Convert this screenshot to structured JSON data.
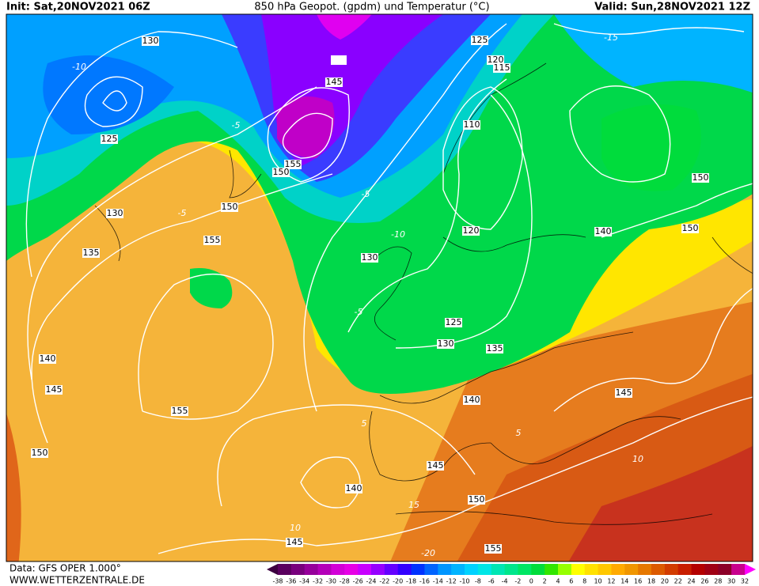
{
  "header": {
    "init": "Init: Sat,20NOV2021 06Z",
    "title": "850 hPa Geopot. (gpdm) und Temperatur (°C)",
    "valid": "Valid: Sun,28NOV2021 12Z"
  },
  "footer": {
    "source": "Data: GFS OPER 1.000°",
    "website": "WWW.WETTERZENTRALE.DE"
  },
  "colorbar": {
    "labels": [
      -38,
      -36,
      -34,
      -32,
      -30,
      -28,
      -26,
      -24,
      -22,
      -20,
      -18,
      -16,
      -14,
      -12,
      -10,
      -8,
      -6,
      -4,
      -2,
      0,
      2,
      4,
      6,
      8,
      10,
      12,
      14,
      16,
      18,
      20,
      22,
      24,
      26,
      28,
      30,
      32
    ],
    "colors": [
      "#3c0040",
      "#5a005f",
      "#78007d",
      "#96009b",
      "#b400b9",
      "#d200d7",
      "#e600e6",
      "#c800ff",
      "#9600ff",
      "#6400ff",
      "#3200ff",
      "#0032ff",
      "#0064ff",
      "#0096ff",
      "#00b4ff",
      "#00d2ff",
      "#00e6e6",
      "#00e6b4",
      "#00e68c",
      "#00e664",
      "#00dc3c",
      "#32e600",
      "#96ff00",
      "#ffff00",
      "#ffe100",
      "#ffc800",
      "#ffaa00",
      "#f09600",
      "#e67800",
      "#dc5a00",
      "#d23c00",
      "#c81e00",
      "#b40000",
      "#a00014",
      "#8c0028",
      "#c8008c",
      "#ff00ff"
    ]
  },
  "geopotential_labels": [
    130,
    125,
    145,
    155,
    150,
    150,
    130,
    135,
    155,
    140,
    145,
    155,
    150,
    130,
    125,
    130,
    135,
    140,
    145,
    145,
    140,
    150,
    155,
    145,
    125,
    120,
    115,
    110,
    120,
    140,
    150,
    150
  ],
  "temperature_labels": [
    -15,
    -10,
    -5,
    -5,
    -10,
    -5,
    -5,
    5,
    5,
    10,
    10,
    15,
    -20
  ]
}
